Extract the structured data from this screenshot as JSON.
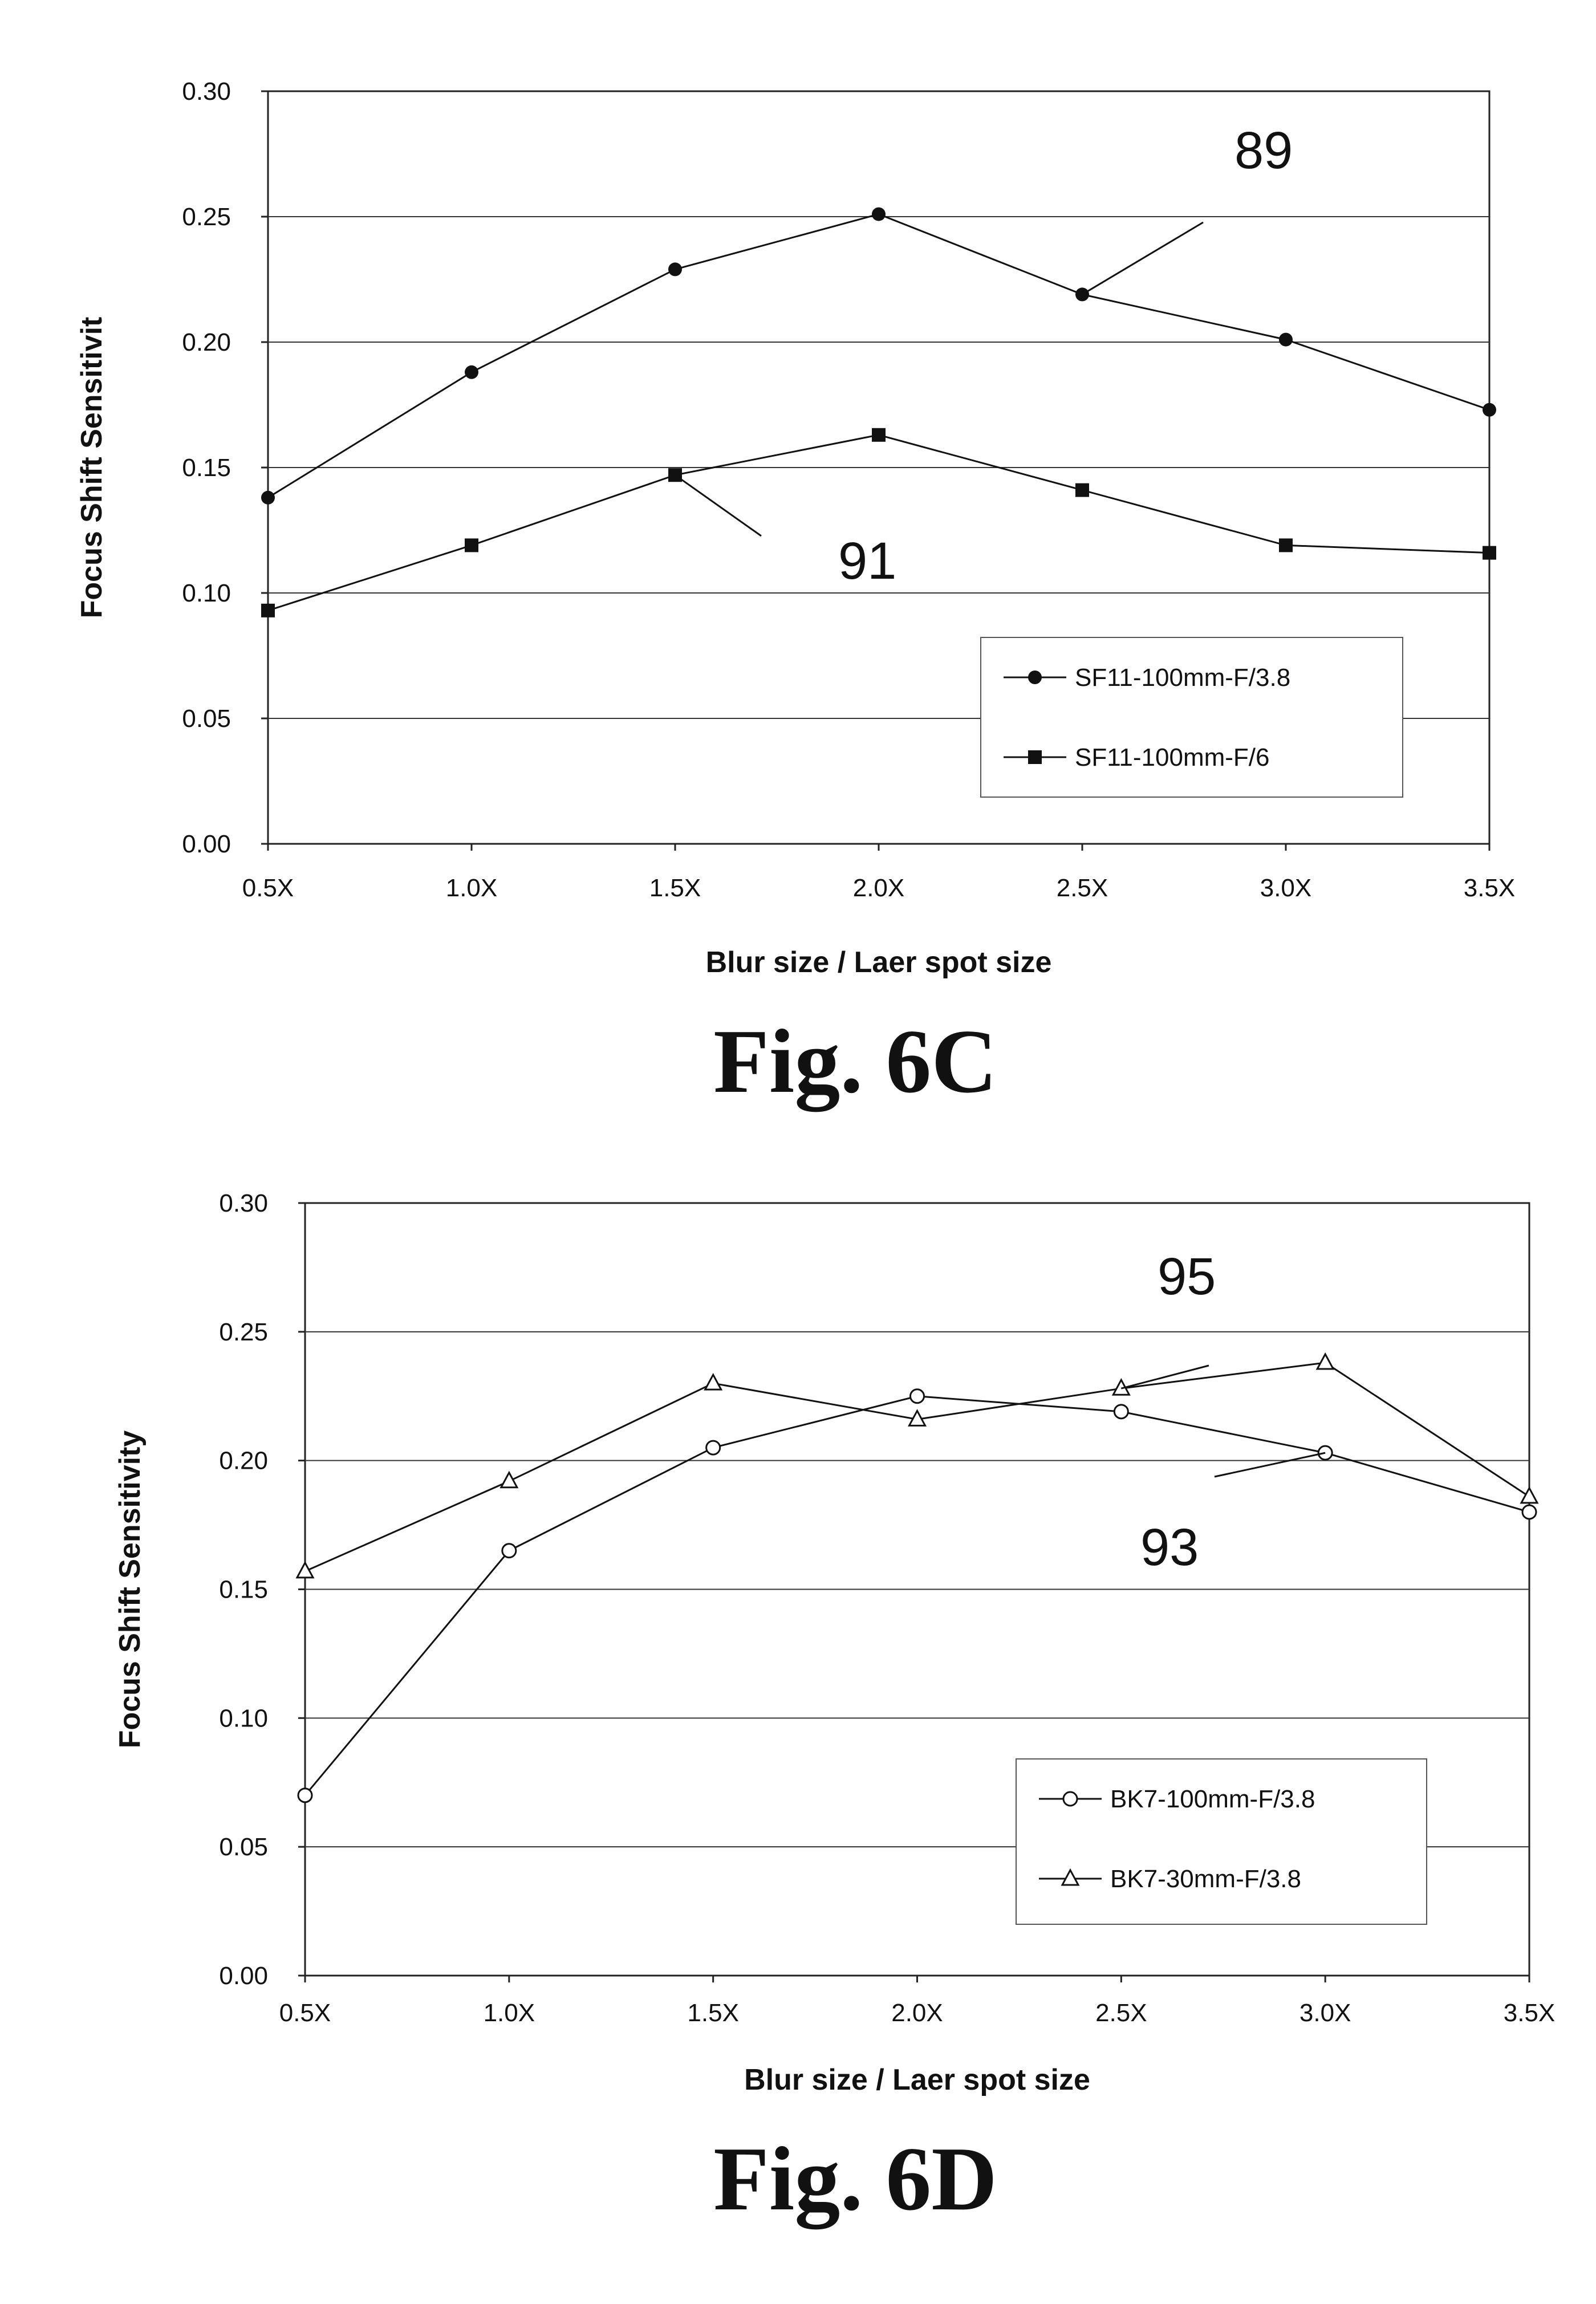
{
  "chart_data": [
    {
      "type": "line",
      "categories": [
        "0.5X",
        "1.0X",
        "1.5X",
        "2.0X",
        "2.5X",
        "3.0X",
        "3.5X"
      ],
      "series": [
        {
          "name": "SF11-100mm-F/3.8",
          "marker": "filled-circle",
          "values": [
            0.138,
            0.188,
            0.229,
            0.251,
            0.219,
            0.201,
            0.173
          ]
        },
        {
          "name": "SF11-100mm-F/6",
          "marker": "filled-square",
          "values": [
            0.093,
            0.119,
            0.147,
            0.163,
            0.141,
            0.119,
            0.116
          ]
        }
      ],
      "xlabel": "Blur size / Laer spot size",
      "ylabel": "Focus Shift Sensitivit",
      "ylim": [
        0.0,
        0.3
      ],
      "yticks": [
        "0.00",
        "0.05",
        "0.10",
        "0.15",
        "0.20",
        "0.25",
        "0.30"
      ],
      "grid": "horizontal",
      "legend_position": "bottom-right",
      "annotations": [
        {
          "text": "89",
          "series": 0,
          "point": 4
        },
        {
          "text": "91",
          "series": 1,
          "point": 2
        }
      ],
      "caption": "Fig. 6C"
    },
    {
      "type": "line",
      "categories": [
        "0.5X",
        "1.0X",
        "1.5X",
        "2.0X",
        "2.5X",
        "3.0X",
        "3.5X"
      ],
      "series": [
        {
          "name": "BK7-100mm-F/3.8",
          "marker": "open-circle",
          "values": [
            0.07,
            0.165,
            0.205,
            0.225,
            0.219,
            0.203,
            0.18
          ]
        },
        {
          "name": "BK7-30mm-F/3.8",
          "marker": "open-triangle",
          "values": [
            0.157,
            0.192,
            0.23,
            0.216,
            0.228,
            0.238,
            0.186
          ]
        }
      ],
      "xlabel": "Blur size / Laer spot size",
      "ylabel": "Focus Shift Sensitivity",
      "ylim": [
        0.0,
        0.3
      ],
      "yticks": [
        "0.00",
        "0.05",
        "0.10",
        "0.15",
        "0.20",
        "0.25",
        "0.30"
      ],
      "grid": "horizontal",
      "legend_position": "bottom-right",
      "annotations": [
        {
          "text": "95",
          "series": 1,
          "point": 4
        },
        {
          "text": "93",
          "series": 0,
          "point": 5
        }
      ],
      "caption": "Fig. 6D"
    }
  ]
}
